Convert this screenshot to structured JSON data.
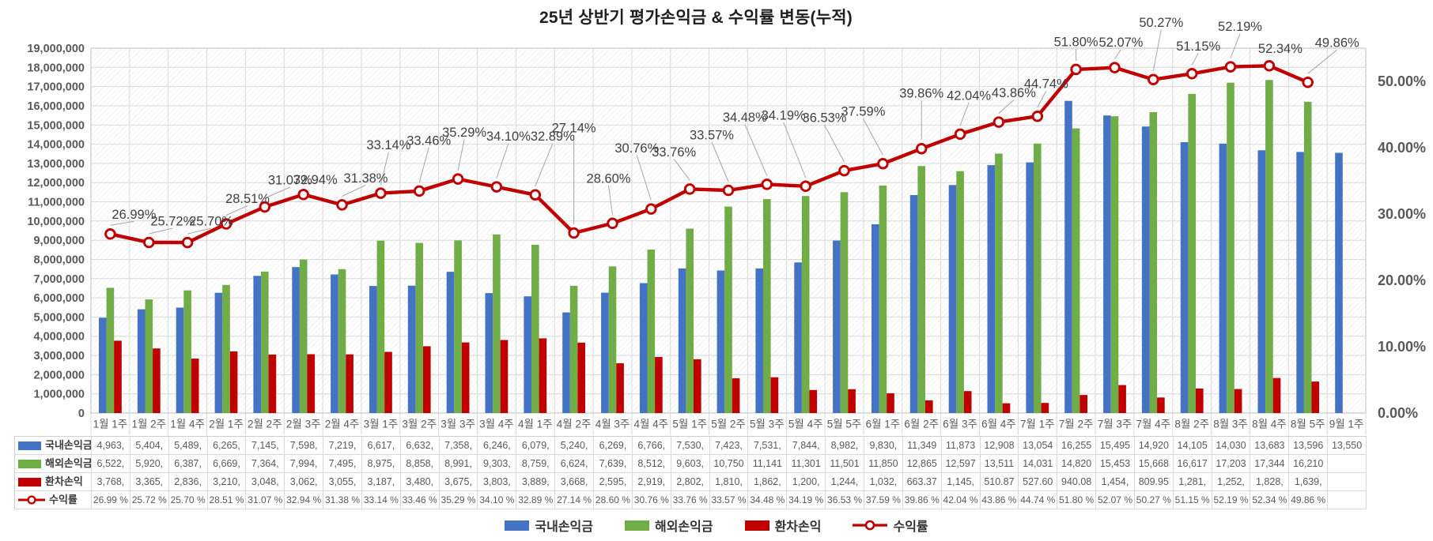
{
  "title": "25년 상반기 평가손익금 & 수익률 변동(누적)",
  "chart_data": {
    "type": "combo-bar-line",
    "title": "25년 상반기 평가손익금 & 수익률 변동(누적)",
    "categories": [
      "1월 1주",
      "1월 2주",
      "1월 4주",
      "2월 1주",
      "2월 2주",
      "2월 3주",
      "2월 4주",
      "3월 1주",
      "3월 2주",
      "3월 3주",
      "3월 4주",
      "4월 1주",
      "4월 2주",
      "4월 3주",
      "4월 4주",
      "5월 1주",
      "5월 2주",
      "5월 3주",
      "5월 4주",
      "5월 5주",
      "6월 1주",
      "6월 2주",
      "6월 3주",
      "6월 4주",
      "7월 1주",
      "7월 2주",
      "7월 3주",
      "7월 4주",
      "8월 2주",
      "8월 3주",
      "8월 4주",
      "8월 5주",
      "9월 1주"
    ],
    "value_unit": "thousand-KRW-per-axis (bar values below are in thousands; axis shows full units)",
    "bar_series": [
      {
        "name": "국내손익금",
        "color": "#4472C4",
        "values": [
          4963,
          5404,
          5489,
          6265,
          7145,
          7598,
          7219,
          6617,
          6632,
          7358,
          6246,
          6079,
          5240,
          6269,
          6766,
          7530,
          7423,
          7531,
          7844,
          8982,
          9830,
          11349,
          11873,
          12908,
          13054,
          16255,
          15495,
          14920,
          14105,
          14030,
          13683,
          13596,
          13550
        ]
      },
      {
        "name": "해외손익금",
        "color": "#70AD47",
        "values": [
          6522,
          5920,
          6387,
          6669,
          7364,
          7994,
          7495,
          8975,
          8858,
          8991,
          9303,
          8759,
          6624,
          7639,
          8512,
          9603,
          10750,
          11141,
          11301,
          11501,
          11850,
          12865,
          12597,
          13511,
          14031,
          14820,
          15453,
          15668,
          16617,
          17203,
          17344,
          16210,
          null
        ]
      },
      {
        "name": "환차손익",
        "color": "#C00000",
        "values": [
          3768,
          3365,
          2836,
          3210,
          3048,
          3062,
          3055,
          3187,
          3480,
          3675,
          3803,
          3889,
          3668,
          2595,
          2919,
          2802,
          1810,
          1862,
          1200,
          1244,
          1032,
          663.37,
          1145,
          510.87,
          527.6,
          940.08,
          1454,
          809.95,
          1281,
          1252,
          1828,
          1639,
          null
        ]
      }
    ],
    "line_series": {
      "name": "수익률",
      "color": "#C00000",
      "marker_fill": "#ffffff",
      "values": [
        26.99,
        25.72,
        25.7,
        28.51,
        31.07,
        32.94,
        31.38,
        33.14,
        33.46,
        35.29,
        34.1,
        32.89,
        27.14,
        28.6,
        30.76,
        33.76,
        33.57,
        34.48,
        34.19,
        36.53,
        37.59,
        39.86,
        42.04,
        43.86,
        44.74,
        51.8,
        52.07,
        50.27,
        51.15,
        52.19,
        52.34,
        49.86,
        null
      ],
      "labels": [
        "26.99%",
        "25.72%",
        "25.70%",
        "28.51%",
        "31.07%",
        "32.94%",
        "31.38%",
        "33.14%",
        "33.46%",
        "35.29%",
        "34.10%",
        "32.89%",
        "27.14%",
        "28.60%",
        "30.76%",
        "33.76%",
        "33.57%",
        "34.48%",
        "34.19%",
        "36.53%",
        "37.59%",
        "39.86%",
        "42.04%",
        "43.86%",
        "44.74%",
        "51.80%",
        "52.07%",
        "50.27%",
        "51.15%",
        "52.19%",
        "52.34%",
        "49.86%"
      ],
      "label_offsets_dx": [
        30,
        30,
        30,
        27,
        32,
        15,
        30,
        10,
        12,
        8,
        15,
        22,
        0,
        -5,
        -18,
        -20,
        -21,
        -28,
        -28,
        -25,
        -25,
        0,
        11,
        19,
        11,
        0,
        8,
        10,
        8,
        12,
        14,
        37
      ],
      "label_offsets_dy": [
        25,
        27,
        27,
        32,
        34,
        19,
        34,
        61,
        64,
        59,
        64,
        74,
        133,
        57,
        77,
        47,
        70,
        85,
        90,
        67,
        66,
        70,
        49,
        37,
        41,
        35,
        32,
        72,
        35,
        51,
        22,
        50
      ]
    },
    "left_axis": {
      "min": 0,
      "max": 19000000,
      "step": 1000000,
      "ticks": [
        "0",
        "1,000,000",
        "2,000,000",
        "3,000,000",
        "4,000,000",
        "5,000,000",
        "6,000,000",
        "7,000,000",
        "8,000,000",
        "9,000,000",
        "10,000,000",
        "11,000,000",
        "12,000,000",
        "13,000,000",
        "14,000,000",
        "15,000,000",
        "16,000,000",
        "17,000,000",
        "18,000,000",
        "19,000,000"
      ]
    },
    "right_axis": {
      "min": 0,
      "max": 55,
      "tick_step": 10,
      "ticks": [
        "0.00%",
        "10.00%",
        "20.00%",
        "30.00%",
        "40.00%",
        "50.00%"
      ]
    },
    "grid": true,
    "plot_background": "diagonal-hatch",
    "legend_position": "bottom",
    "colors": {
      "grid": "#d9d9d9",
      "plot_border": "#bfbfbf",
      "hatch": "#e8e8e8",
      "axis_text": "#595959",
      "data_label_text": "#404040",
      "leader_line": "#a6a6a6"
    }
  },
  "table": {
    "rows": [
      {
        "label": "국내손익금",
        "marker": "bar",
        "color": "#4472C4",
        "cells": [
          "4,963,",
          "5,404,",
          "5,489,",
          "6,265,",
          "7,145,",
          "7,598,",
          "7,219,",
          "6,617,",
          "6,632,",
          "7,358,",
          "6,246,",
          "6,079,",
          "5,240,",
          "6,269,",
          "6,766,",
          "7,530,",
          "7,423,",
          "7,531,",
          "7,844,",
          "8,982,",
          "9,830,",
          "11,349",
          "11,873",
          "12,908",
          "13,054",
          "16,255",
          "15,495",
          "14,920",
          "14,105",
          "14,030",
          "13,683",
          "13,596",
          "13,550"
        ]
      },
      {
        "label": "해외손익금",
        "marker": "bar",
        "color": "#70AD47",
        "cells": [
          "6,522,",
          "5,920,",
          "6,387,",
          "6,669,",
          "7,364,",
          "7,994,",
          "7,495,",
          "8,975,",
          "8,858,",
          "8,991,",
          "9,303,",
          "8,759,",
          "6,624,",
          "7,639,",
          "8,512,",
          "9,603,",
          "10,750",
          "11,141",
          "11,301",
          "11,501",
          "11,850",
          "12,865",
          "12,597",
          "13,511",
          "14,031",
          "14,820",
          "15,453",
          "15,668",
          "16,617",
          "17,203",
          "17,344",
          "16,210",
          ""
        ]
      },
      {
        "label": "환차손익",
        "marker": "bar",
        "color": "#C00000",
        "cells": [
          "3,768,",
          "3,365,",
          "2,836,",
          "3,210,",
          "3,048,",
          "3,062,",
          "3,055,",
          "3,187,",
          "3,480,",
          "3,675,",
          "3,803,",
          "3,889,",
          "3,668,",
          "2,595,",
          "2,919,",
          "2,802,",
          "1,810,",
          "1,862,",
          "1,200,",
          "1,244,",
          "1,032,",
          "663.37",
          "1,145,",
          "510.87",
          "527.60",
          "940.08",
          "1,454,",
          "809.95",
          "1,281,",
          "1,252,",
          "1,828,",
          "1,639,",
          ""
        ]
      },
      {
        "label": "수익률",
        "marker": "line",
        "color": "#C00000",
        "cells": [
          "26.99 %",
          "25.72 %",
          "25.70 %",
          "28.51 %",
          "31.07 %",
          "32.94 %",
          "31.38 %",
          "33.14 %",
          "33.46 %",
          "35.29 %",
          "34.10 %",
          "32.89 %",
          "27.14 %",
          "28.60 %",
          "30.76 %",
          "33.76 %",
          "33.57 %",
          "34.48 %",
          "34.19 %",
          "36.53 %",
          "37.59 %",
          "39.86 %",
          "42.04 %",
          "43.86 %",
          "44.74 %",
          "51.80 %",
          "52.07 %",
          "50.27 %",
          "51.15 %",
          "52.19 %",
          "52.34 %",
          "49.86 %",
          ""
        ]
      }
    ]
  },
  "legend": {
    "items": [
      {
        "label": "국내손익금",
        "marker": "bar",
        "color": "#4472C4"
      },
      {
        "label": "해외손익금",
        "marker": "bar",
        "color": "#70AD47"
      },
      {
        "label": "환차손익",
        "marker": "bar",
        "color": "#C00000"
      },
      {
        "label": "수익률",
        "marker": "line",
        "color": "#C00000"
      }
    ]
  }
}
